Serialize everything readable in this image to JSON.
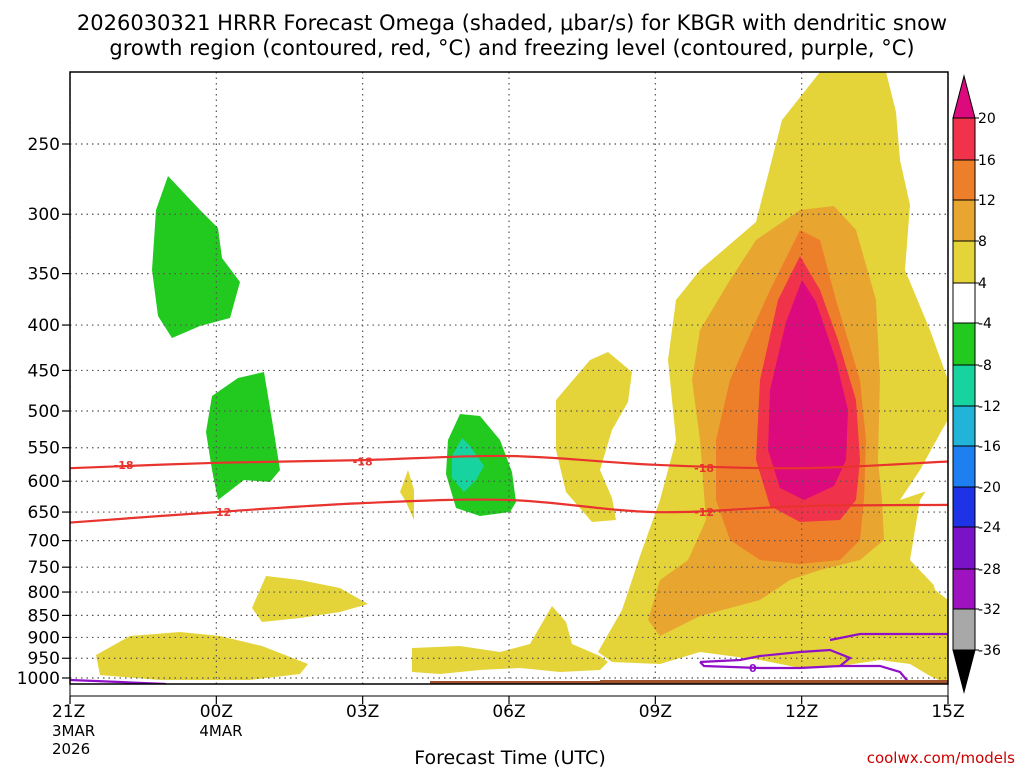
{
  "chart_data": {
    "type": "heatmap",
    "title_line1": "2026030321 HRRR Forecast Omega (shaded, μbar/s) for KBGR with dendritic snow",
    "title_line2": "growth region (contoured, red, °C) and freezing level (contoured, purple, °C)",
    "xlabel": "Forecast Time (UTC)",
    "ylabel": "",
    "credit": "coolwx.com/models",
    "x_ticks": [
      {
        "hours": 0,
        "label": "21Z",
        "sub1": "3MAR",
        "sub2": "2026"
      },
      {
        "hours": 3,
        "label": "00Z",
        "sub1": "4MAR",
        "sub2": ""
      },
      {
        "hours": 6,
        "label": "03Z",
        "sub1": "",
        "sub2": ""
      },
      {
        "hours": 9,
        "label": "06Z",
        "sub1": "",
        "sub2": ""
      },
      {
        "hours": 12,
        "label": "09Z",
        "sub1": "",
        "sub2": ""
      },
      {
        "hours": 15,
        "label": "12Z",
        "sub1": "",
        "sub2": ""
      },
      {
        "hours": 18,
        "label": "15Z",
        "sub1": "",
        "sub2": ""
      }
    ],
    "xlim_hours": [
      0,
      18
    ],
    "y_ticks_hpa": [
      "250",
      "300",
      "350",
      "400",
      "450",
      "500",
      "550",
      "600",
      "650",
      "700",
      "750",
      "800",
      "850",
      "900",
      "950",
      "1000"
    ],
    "ylim_hpa": [
      1030,
      200
    ],
    "colorbar": {
      "levels": [
        "20",
        "16",
        "12",
        "8",
        "4",
        "-4",
        "-8",
        "-12",
        "-16",
        "-20",
        "-24",
        "-28",
        "-32",
        "-36"
      ],
      "colors_top_to_bottom": [
        "#dd0a7d",
        "#f0334a",
        "#ee7f2a",
        "#e8a630",
        "#e4d43a",
        "#ffffff",
        "#22c91f",
        "#17d3a0",
        "#22b4d8",
        "#1e7ff0",
        "#1e32e6",
        "#7a12c8",
        "#9e12c0",
        "#a8a8a8",
        "#000000"
      ]
    },
    "contour_labels": [
      {
        "value": "-18",
        "hour": 1.1,
        "hpa": 575
      },
      {
        "value": "-18",
        "hour": 6.0,
        "hpa": 570
      },
      {
        "value": "-18",
        "hour": 13.0,
        "hpa": 580
      },
      {
        "value": "-12",
        "hour": 3.1,
        "hpa": 650
      },
      {
        "value": "-12",
        "hour": 13.0,
        "hpa": 650
      },
      {
        "value": "0",
        "hour": 14.0,
        "hpa": 975
      }
    ],
    "series": [
      {
        "name": "dendritic -18C level (hPa)",
        "hours": [
          0,
          3,
          6,
          9,
          12,
          15,
          18
        ],
        "values": [
          580,
          572,
          568,
          562,
          575,
          580,
          570
        ]
      },
      {
        "name": "dendritic -12C level (hPa)",
        "hours": [
          0,
          3,
          6,
          9,
          12,
          15,
          18
        ],
        "values": [
          668,
          650,
          635,
          630,
          650,
          640,
          638
        ]
      },
      {
        "name": "freezing level 0C (hPa)",
        "hours": [
          0,
          2,
          13.2,
          14.2,
          18
        ],
        "values": [
          1000,
          1008,
          970,
          925,
          920
        ]
      }
    ],
    "omega_features": [
      {
        "name": "max upward omega core",
        "hour": 15.0,
        "hpa": 450,
        "value": ">20"
      },
      {
        "name": "sinking cell upper",
        "hour": 2.2,
        "hpa": 340,
        "value": "-4 to -8"
      },
      {
        "name": "sinking cell mid",
        "hour": 3.5,
        "hpa": 540,
        "value": "-4 to -8"
      },
      {
        "name": "sinking cell 06Z",
        "hour": 8.0,
        "hpa": 590,
        "value": "-8 to -12"
      }
    ]
  }
}
